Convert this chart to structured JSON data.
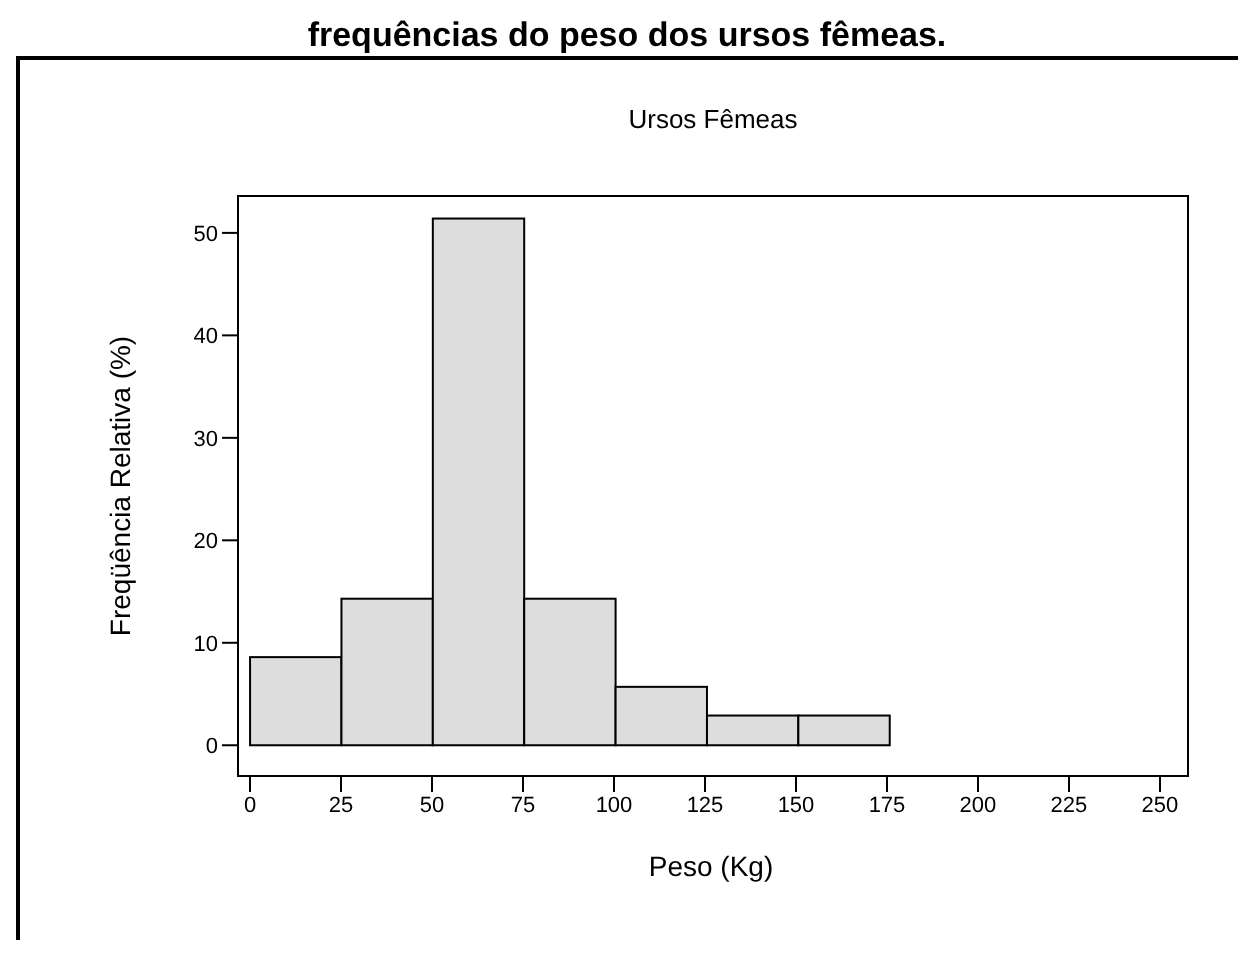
{
  "chart_data": {
    "type": "histogram",
    "title": "Ursos Fêmeas",
    "annotations": [
      "frequências do peso dos ursos fêmeas."
    ],
    "xlabel": "Peso (Kg)",
    "ylabel": "Freqüência Relativa (%)",
    "bins": [
      0,
      25,
      50,
      75,
      100,
      125,
      150,
      175,
      200,
      225,
      250
    ],
    "values": [
      8.6,
      14.3,
      51.4,
      14.3,
      5.7,
      2.9,
      2.9,
      0,
      0,
      0
    ],
    "color": "#dddddd",
    "xlim": [
      -3.3,
      256.6
    ],
    "xticks": [
      0,
      25,
      50,
      75,
      100,
      125,
      150,
      175,
      200,
      225,
      250
    ],
    "ylim": [
      -3,
      53.6
    ],
    "yticks": [
      0,
      10,
      20,
      30,
      40,
      50
    ],
    "grid": false
  }
}
